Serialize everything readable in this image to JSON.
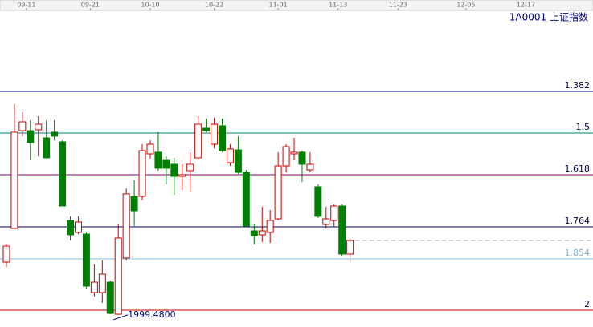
{
  "chart_data": {
    "type": "candlestick",
    "title": "1A0001 上证指数",
    "x": [
      0,
      1,
      2,
      3,
      4,
      5,
      6,
      7,
      8,
      9,
      10,
      11,
      12,
      13,
      14,
      15,
      16,
      17,
      18,
      19,
      20,
      21,
      22,
      23,
      24,
      25,
      26,
      27,
      28,
      29,
      30,
      31,
      32,
      33,
      34,
      35,
      36,
      37,
      38,
      39,
      40,
      41,
      42,
      43
    ],
    "open": [
      2040.6,
      2066.9,
      2143.1,
      2143.1,
      2143.8,
      2137.5,
      2141.9,
      2134.4,
      2073.1,
      2063.8,
      2062.5,
      2016.9,
      2016.9,
      2025.0,
      2000.0,
      2043.8,
      2091.9,
      2091.9,
      2125.0,
      2126.3,
      2120.0,
      2116.9,
      2107.5,
      2111.9,
      2121.9,
      2145.0,
      2132.5,
      2146.9,
      2118.1,
      2128.1,
      2110.6,
      2065.0,
      2061.9,
      2063.8,
      2074.4,
      2115.6,
      2125.0,
      2126.3,
      2112.5,
      2099.4,
      2070.0,
      2073.1,
      2084.4,
      2046.9
    ],
    "high": [
      2054.4,
      2163.8,
      2157.5,
      2151.3,
      2154.4,
      2151.3,
      2151.3,
      2135.6,
      2076.3,
      2076.3,
      2063.8,
      2038.8,
      2041.9,
      2026.3,
      2070.0,
      2098.1,
      2104.4,
      2132.5,
      2135.6,
      2141.9,
      2123.1,
      2121.9,
      2116.9,
      2126.3,
      2154.4,
      2152.5,
      2153.1,
      2152.5,
      2132.5,
      2138.8,
      2112.5,
      2070.0,
      2083.8,
      2081.3,
      2126.3,
      2132.5,
      2137.5,
      2127.5,
      2126.3,
      2101.3,
      2083.8,
      2085.6,
      2085.6,
      2059.4
    ],
    "low": [
      2036.9,
      2066.9,
      2138.8,
      2120.0,
      2123.1,
      2121.9,
      2135.6,
      2084.4,
      2057.5,
      2062.5,
      2020.0,
      2013.8,
      2008.8,
      2000.0,
      1999.48,
      2041.9,
      2068.8,
      2088.8,
      2121.3,
      2111.9,
      2101.3,
      2093.1,
      2096.9,
      2095.0,
      2120.0,
      2141.9,
      2129.4,
      2126.3,
      2115.6,
      2109.4,
      2068.1,
      2054.4,
      2056.3,
      2055.6,
      2073.1,
      2110.6,
      2120.0,
      2103.1,
      2110.6,
      2075.0,
      2066.9,
      2068.1,
      2045.0,
      2040.0
    ],
    "close": [
      2053.1,
      2141.9,
      2150.0,
      2133.8,
      2148.1,
      2121.9,
      2138.8,
      2084.4,
      2061.9,
      2071.9,
      2021.9,
      2025.0,
      2031.3,
      2000.6,
      2059.4,
      2093.8,
      2080.6,
      2127.5,
      2132.5,
      2113.8,
      2113.8,
      2107.5,
      2108.8,
      2116.9,
      2148.1,
      2143.1,
      2148.1,
      2127.5,
      2128.8,
      2110.6,
      2068.8,
      2061.3,
      2065.0,
      2073.1,
      2115.6,
      2130.6,
      2126.3,
      2116.9,
      2116.9,
      2076.3,
      2074.4,
      2084.4,
      2046.9,
      2057.5
    ],
    "up_color": "#cc0000",
    "down_color": "#008000",
    "xlim": [
      -0.8,
      73.4
    ],
    "ylim": [
      1990,
      2240
    ],
    "xticks": [
      {
        "value": 2.5,
        "label": "09-11"
      },
      {
        "value": 10.5,
        "label": "09-21"
      },
      {
        "value": 18,
        "label": "10-10"
      },
      {
        "value": 26,
        "label": "10-22"
      },
      {
        "value": 34,
        "label": "11-01"
      },
      {
        "value": 41.5,
        "label": "11-13"
      },
      {
        "value": 49,
        "label": "11-23"
      },
      {
        "value": 57.5,
        "label": "12-05"
      },
      {
        "value": 65,
        "label": "12-17"
      }
    ],
    "levels": [
      {
        "value": 2173.75,
        "label": "1.382",
        "color": "#000080"
      },
      {
        "value": 2141.25,
        "label": "1.5",
        "color": "#008080"
      },
      {
        "value": 2108.75,
        "label": "1.618",
        "color": "#800080"
      },
      {
        "value": 2068.1,
        "label": "1.764",
        "color": "#000060"
      },
      {
        "value": 2043.1,
        "label": "1.854",
        "color": "#80c0e0"
      },
      {
        "value": 2003.1,
        "label": "2",
        "color": "#cc0000"
      }
    ],
    "low_annotation": "1999.4800"
  }
}
